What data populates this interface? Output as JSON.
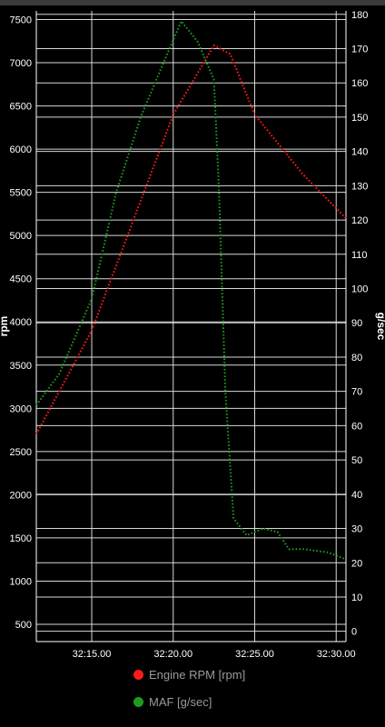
{
  "chart_data": {
    "type": "line",
    "x_unit": "time (mm:ss)",
    "x": [
      "32:12.00",
      "32:13.00",
      "32:14.00",
      "32:15.00",
      "32:16.00",
      "32:17.00",
      "32:18.00",
      "32:19.00",
      "32:20.00",
      "32:20.50",
      "32:21.00",
      "32:22.00",
      "32:22.50",
      "32:23.00",
      "32:23.50",
      "32:23.70",
      "32:24.00",
      "32:25.00",
      "32:26.00",
      "32:27.00",
      "32:28.00",
      "32:29.00",
      "32:30.00",
      "32:30.40"
    ],
    "xlim": [
      "32:11.60",
      "32:30.60"
    ],
    "xticks": [
      "32:15.00",
      "32:20.00",
      "32:25.00",
      "32:30.00"
    ],
    "y_left": {
      "label": "rpm",
      "lim": [
        300,
        7600
      ],
      "ticks": [
        500,
        1000,
        1500,
        2000,
        2500,
        3000,
        3500,
        4000,
        4500,
        5000,
        5500,
        6000,
        6500,
        7000,
        7500
      ]
    },
    "y_right": {
      "label": "g/sec",
      "lim": [
        -3,
        181
      ],
      "ticks": [
        0,
        10,
        20,
        30,
        40,
        50,
        60,
        70,
        80,
        90,
        100,
        110,
        120,
        130,
        140,
        150,
        160,
        170,
        180
      ]
    },
    "grid": true,
    "legend_position": "bottom",
    "series": [
      {
        "name": "Engine RPM [rpm]",
        "axis": "left",
        "color": "#ff1a1a",
        "x": [
          "32:11.60",
          "32:15.00",
          "32:20.00",
          "32:22.50",
          "32:23.50",
          "32:25.00",
          "32:28.00",
          "32:30.60"
        ],
        "values": [
          2700,
          3900,
          6400,
          7200,
          7100,
          6400,
          5700,
          5200
        ]
      },
      {
        "name": "MAF [g/sec]",
        "axis": "right",
        "color": "#1f9a1f",
        "x": [
          "32:11.60",
          "32:13.00",
          "32:15.00",
          "32:16.50",
          "32:18.00",
          "32:19.50",
          "32:20.50",
          "32:21.50",
          "32:22.50",
          "32:22.80",
          "32:23.20",
          "32:23.70",
          "32:24.50",
          "32:25.50",
          "32:26.40",
          "32:27.10",
          "32:28.00",
          "32:29.50",
          "32:30.60"
        ],
        "values": [
          66,
          75,
          97,
          128,
          150,
          167,
          178,
          172,
          161,
          130,
          70,
          33,
          28,
          30,
          29,
          24,
          24,
          23,
          21
        ]
      }
    ]
  },
  "legend": {
    "items": [
      {
        "label": "Engine RPM [rpm]",
        "color": "#ff1a1a"
      },
      {
        "label": "MAF [g/sec]",
        "color": "#1f9a1f"
      }
    ]
  }
}
